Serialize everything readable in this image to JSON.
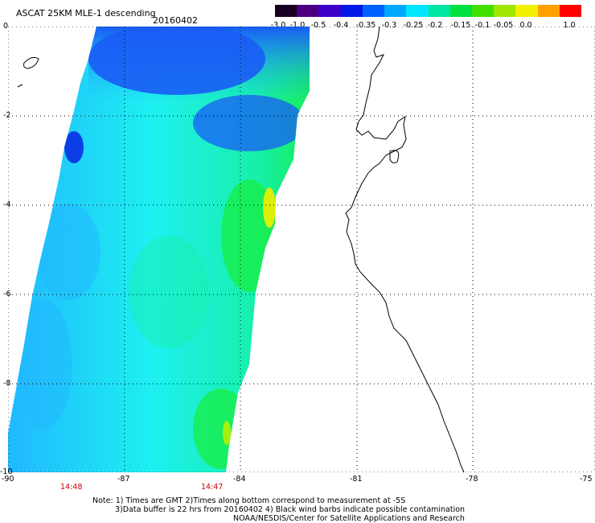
{
  "header": {
    "title": "ASCAT 25KM MLE-1 descending",
    "date": "20160402"
  },
  "colorbar": {
    "ticks": [
      "-3.0",
      "-1.0",
      "-0.5",
      "-0.4",
      "-0.35",
      "-0.3",
      "-0.25",
      "-0.2",
      "-0.15",
      "-0.1",
      "-0.05",
      "0.0",
      "1.0"
    ],
    "colors": [
      "#1a0020",
      "#4b0082",
      "#3a00c8",
      "#0018e6",
      "#0060ff",
      "#00a8ff",
      "#00e6ff",
      "#00e6a0",
      "#00e040",
      "#40e000",
      "#a0e600",
      "#f0f000",
      "#ffa000",
      "#ff0000"
    ]
  },
  "map": {
    "y_ticks": [
      "0",
      "-2",
      "-4",
      "-6",
      "-8",
      "-10"
    ],
    "x_ticks": [
      "-90",
      "-87",
      "-84",
      "-81",
      "-78",
      "-75"
    ],
    "times": [
      "14:48",
      "14:47"
    ],
    "swath_colors": {
      "deep_blue": "#0a2de6",
      "blue": "#1a5cf5",
      "cyan_blue": "#20b8ff",
      "cyan": "#1ef0f0",
      "aqua_green": "#16f0a8",
      "green": "#18ec3a",
      "yellow_green": "#b8f000",
      "yellow": "#f0f000"
    }
  },
  "notes": {
    "line1": "Note: 1) Times are GMT 2)Times along bottom correspond to measurement at -5S",
    "line2": "3)Data buffer is 22 hrs from 20160402 4) Black wind barbs indicate possible contamination",
    "line3": "NOAA/NESDIS/Center for Satellite Applications and Research"
  }
}
